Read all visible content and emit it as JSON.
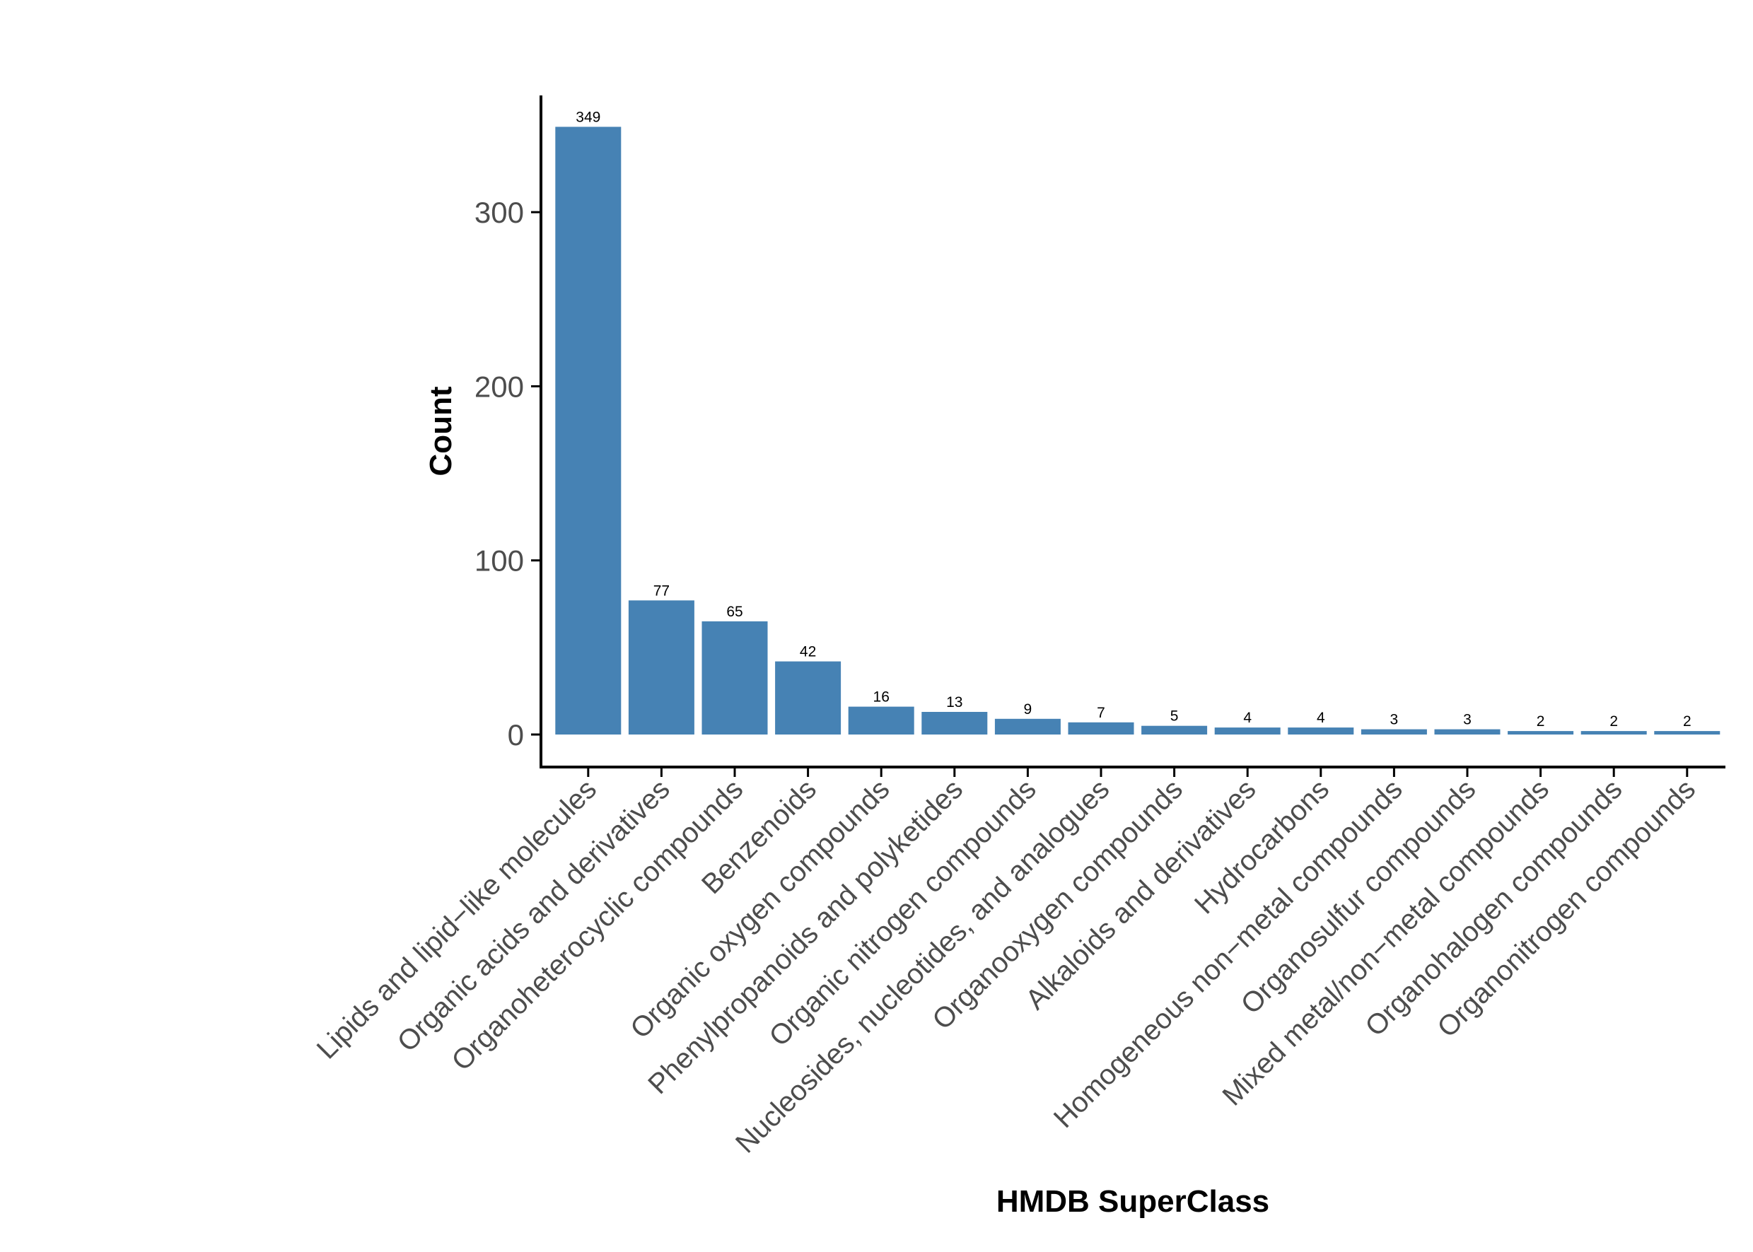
{
  "chart_data": {
    "type": "bar",
    "title": "",
    "xlabel": "HMDB SuperClass",
    "ylabel": "Count",
    "ylim": [
      0,
      366
    ],
    "yticks": [
      0,
      100,
      200,
      300
    ],
    "grid": false,
    "legend": "none",
    "bar_color": "#4682B4",
    "categories": [
      "Lipids and lipid−like molecules",
      "Organic acids and derivatives",
      "Organoheterocyclic compounds",
      "Benzenoids",
      "Organic oxygen compounds",
      "Phenylpropanoids and polyketides",
      "Organic nitrogen compounds",
      "Nucleosides, nucleotides, and analogues",
      "Organooxygen compounds",
      "Alkaloids and derivatives",
      "Hydrocarbons",
      "Homogeneous non−metal compounds",
      "Organosulfur compounds",
      "Mixed metal/non−metal compounds",
      "Organohalogen compounds",
      "Organonitrogen compounds"
    ],
    "values": [
      349,
      77,
      65,
      42,
      16,
      13,
      9,
      7,
      5,
      4,
      4,
      3,
      3,
      2,
      2,
      2
    ]
  }
}
